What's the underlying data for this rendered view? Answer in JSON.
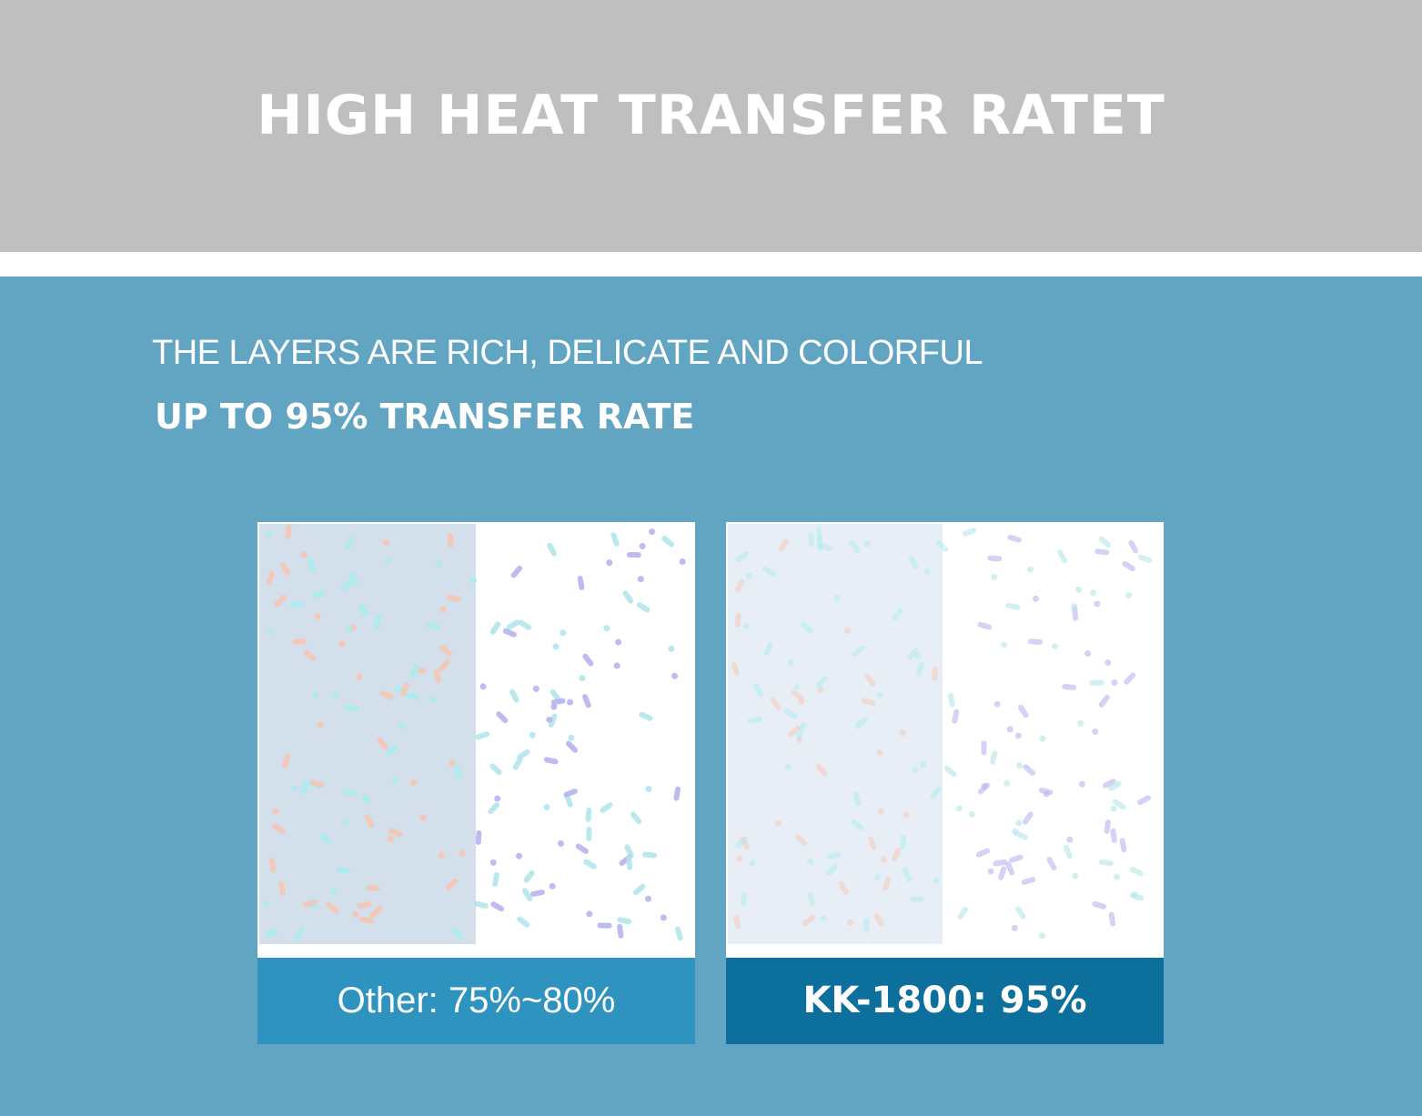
{
  "header": {
    "title": "HIGH HEAT TRANSFER RATET"
  },
  "intro": {
    "line1": "THE LAYERS ARE RICH, DELICATE AND COLORFUL",
    "line2": "UP TO 95% TRANSFER RATE"
  },
  "panels": [
    {
      "label": "Other: 75%~80%"
    },
    {
      "label": "KK-1800: 95%"
    }
  ]
}
